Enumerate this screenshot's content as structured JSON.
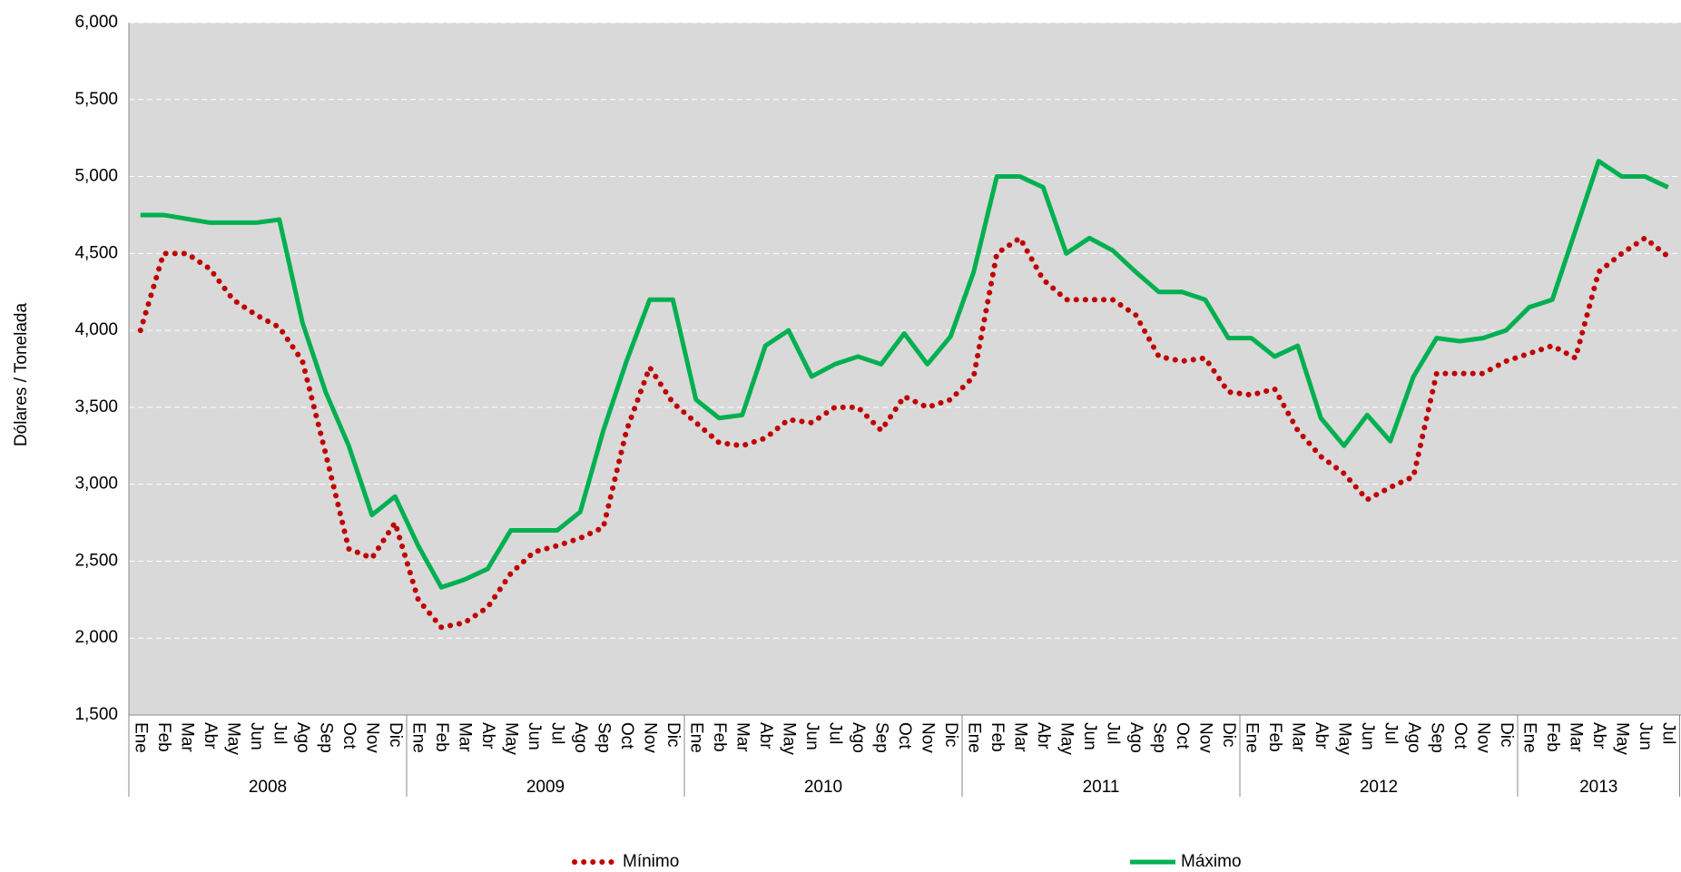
{
  "chart_data": {
    "type": "line",
    "y_label": "Dólares / Tonelada",
    "categories": [
      "Ene",
      "Feb",
      "Mar",
      "Abr",
      "May",
      "Jun",
      "Jul",
      "Ago",
      "Sep",
      "Oct",
      "Nov",
      "Dic",
      "Ene",
      "Feb",
      "Mar",
      "Abr",
      "May",
      "Jun",
      "Jul",
      "Ago",
      "Sep",
      "Oct",
      "Nov",
      "Dic",
      "Ene",
      "Feb",
      "Mar",
      "Abr",
      "May",
      "Jun",
      "Jul",
      "Ago",
      "Sep",
      "Oct",
      "Nov",
      "Dic",
      "Ene",
      "Feb",
      "Mar",
      "Abr",
      "May",
      "Jun",
      "Jul",
      "Ago",
      "Sep",
      "Oct",
      "Nov",
      "Dic",
      "Ene",
      "Feb",
      "Mar",
      "Abr",
      "May",
      "Jun",
      "Jul",
      "Ago",
      "Sep",
      "Oct",
      "Nov",
      "Dic",
      "Ene",
      "Feb",
      "Mar",
      "Abr",
      "May",
      "Jun",
      "Jul"
    ],
    "groups": [
      {
        "label": "2008",
        "span": 12
      },
      {
        "label": "2009",
        "span": 12
      },
      {
        "label": "2010",
        "span": 12
      },
      {
        "label": "2011",
        "span": 12
      },
      {
        "label": "2012",
        "span": 12
      },
      {
        "label": "2013",
        "span": 7
      }
    ],
    "series": [
      {
        "name": "Mínimo",
        "color": "#c00000",
        "dash": "dotted",
        "values": [
          4000,
          4500,
          4500,
          4400,
          4200,
          4100,
          4020,
          3800,
          3200,
          2580,
          2520,
          2750,
          2250,
          2070,
          2100,
          2200,
          2420,
          2560,
          2600,
          2650,
          2720,
          3350,
          3760,
          3530,
          3400,
          3270,
          3250,
          3300,
          3420,
          3400,
          3500,
          3500,
          3350,
          3570,
          3500,
          3550,
          3700,
          4500,
          4600,
          4330,
          4200,
          4200,
          4200,
          4100,
          3830,
          3800,
          3820,
          3600,
          3580,
          3620,
          3350,
          3180,
          3070,
          2900,
          2980,
          3050,
          3720,
          3720,
          3720,
          3800,
          3850,
          3900,
          3820,
          4380,
          4500,
          4600,
          4480
        ]
      },
      {
        "name": "Máximo",
        "color": "#00b050",
        "dash": "solid",
        "values": [
          4750,
          4750,
          4725,
          4700,
          4700,
          4700,
          4720,
          4050,
          3600,
          3250,
          2800,
          2920,
          2600,
          2330,
          2380,
          2450,
          2700,
          2700,
          2700,
          2820,
          3350,
          3800,
          4200,
          4200,
          3550,
          3430,
          3450,
          3900,
          4000,
          3700,
          3780,
          3830,
          3780,
          3980,
          3780,
          3960,
          4380,
          5000,
          5000,
          4930,
          4500,
          4600,
          4520,
          4380,
          4250,
          4250,
          4200,
          3950,
          3950,
          3830,
          3900,
          3430,
          3250,
          3450,
          3280,
          3700,
          3950,
          3930,
          3950,
          4000,
          4150,
          4200,
          4650,
          5100,
          5000,
          5000,
          4930
        ]
      }
    ],
    "ylim": [
      1500,
      6000
    ],
    "yticks": [
      {
        "value": 1500,
        "label": "1,500"
      },
      {
        "value": 2000,
        "label": "2,000"
      },
      {
        "value": 2500,
        "label": "2,500"
      },
      {
        "value": 3000,
        "label": "3,000"
      },
      {
        "value": 3500,
        "label": "3,500"
      },
      {
        "value": 4000,
        "label": "4,000"
      },
      {
        "value": 4500,
        "label": "4,500"
      },
      {
        "value": 5000,
        "label": "5,000"
      },
      {
        "value": 5500,
        "label": "5,500"
      },
      {
        "value": 6000,
        "label": "6,000"
      }
    ],
    "grid": true,
    "legend": "bottom"
  }
}
